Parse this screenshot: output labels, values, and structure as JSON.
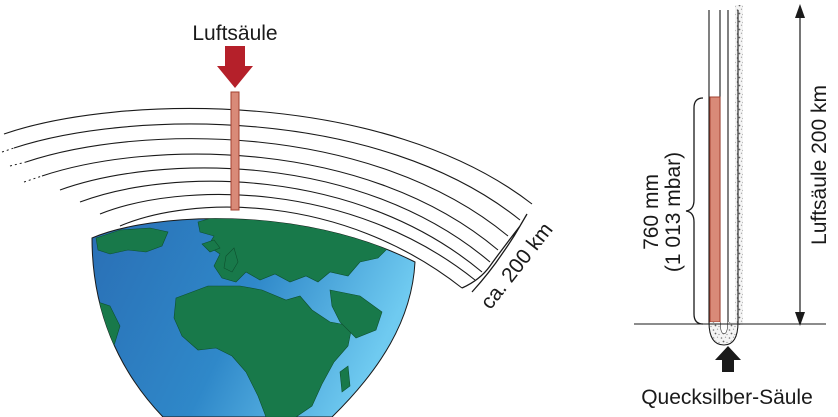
{
  "labels": {
    "air_column": "Luftsäule",
    "atmosphere_height": "ca. 200 km",
    "mercury_height": "760 mm",
    "pressure": "(1 013 mbar)",
    "air_column_height": "Luftsäule 200 km",
    "mercury_column": "Quecksilber-Säule"
  },
  "colors": {
    "arrow": "#b5202a",
    "column_fill": "#d98a78",
    "column_edge": "#a2402f",
    "ocean": "#2e7fc1",
    "ocean_light": "#6cc7ef",
    "land": "#18794a",
    "line": "#1a1a1a"
  }
}
